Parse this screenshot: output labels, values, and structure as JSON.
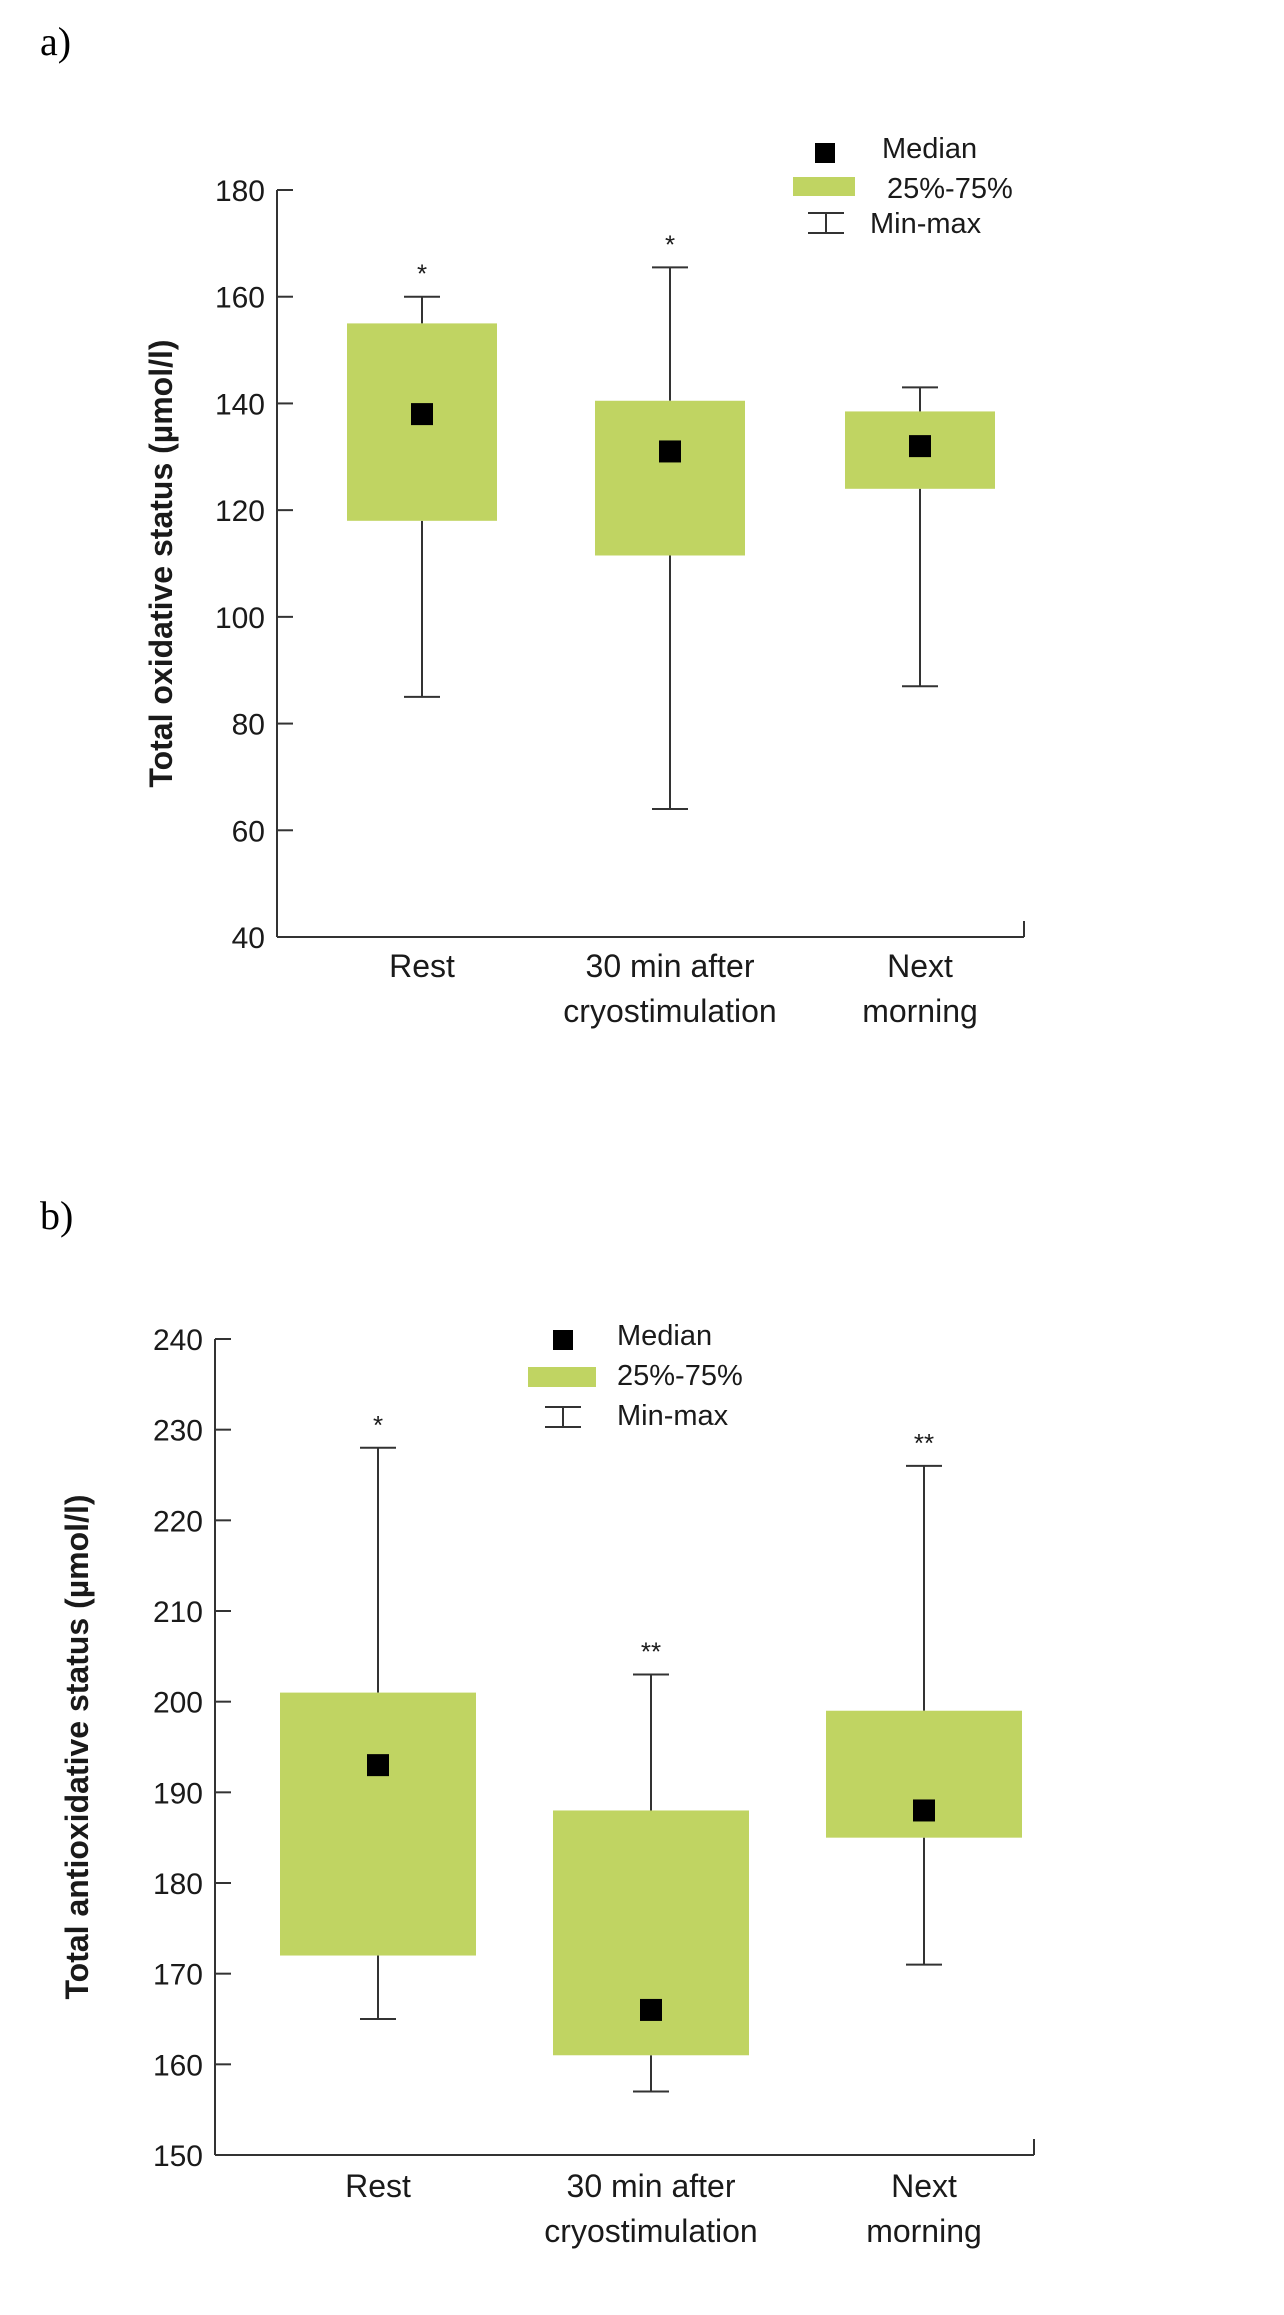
{
  "panels": [
    {
      "letter": "a)"
    },
    {
      "letter": "b)"
    }
  ],
  "chart_data": [
    {
      "type": "box",
      "title": "",
      "ylabel": "Total oxidative status (µmol/l)",
      "ylim": [
        40,
        180
      ],
      "yticks": [
        40,
        60,
        80,
        100,
        120,
        140,
        160,
        180
      ],
      "categories": [
        [
          "Rest"
        ],
        [
          "30 min after",
          "cryostimulation"
        ],
        [
          "Next",
          "morning"
        ]
      ],
      "median": [
        138,
        131,
        132
      ],
      "q1": [
        118,
        111.5,
        124
      ],
      "q3": [
        155,
        140.5,
        138.5
      ],
      "min": [
        85,
        64,
        87
      ],
      "max": [
        160,
        165.5,
        143
      ],
      "significance": [
        "*",
        "*",
        ""
      ],
      "legend": {
        "median": "Median",
        "iqr": "25%-75%",
        "range": "Min-max",
        "placement": "top-right"
      },
      "colors": {
        "box": "#c0d462",
        "marker": "#000000"
      }
    },
    {
      "type": "box",
      "title": "",
      "ylabel": "Total antioxidative status (µmol/l)",
      "ylim": [
        150,
        240
      ],
      "yticks": [
        150,
        160,
        170,
        180,
        190,
        200,
        210,
        220,
        230,
        240
      ],
      "categories": [
        [
          "Rest"
        ],
        [
          "30 min after",
          "cryostimulation"
        ],
        [
          "Next",
          "morning"
        ]
      ],
      "median": [
        193,
        166,
        188
      ],
      "q1": [
        172,
        161,
        185
      ],
      "q3": [
        201,
        188,
        199
      ],
      "min": [
        165,
        157,
        171
      ],
      "max": [
        228,
        203,
        226
      ],
      "significance": [
        "*",
        "**",
        "**"
      ],
      "legend": {
        "median": "Median",
        "iqr": "25%-75%",
        "range": "Min-max",
        "placement": "top-center"
      },
      "colors": {
        "box": "#c0d462",
        "marker": "#000000"
      }
    }
  ]
}
